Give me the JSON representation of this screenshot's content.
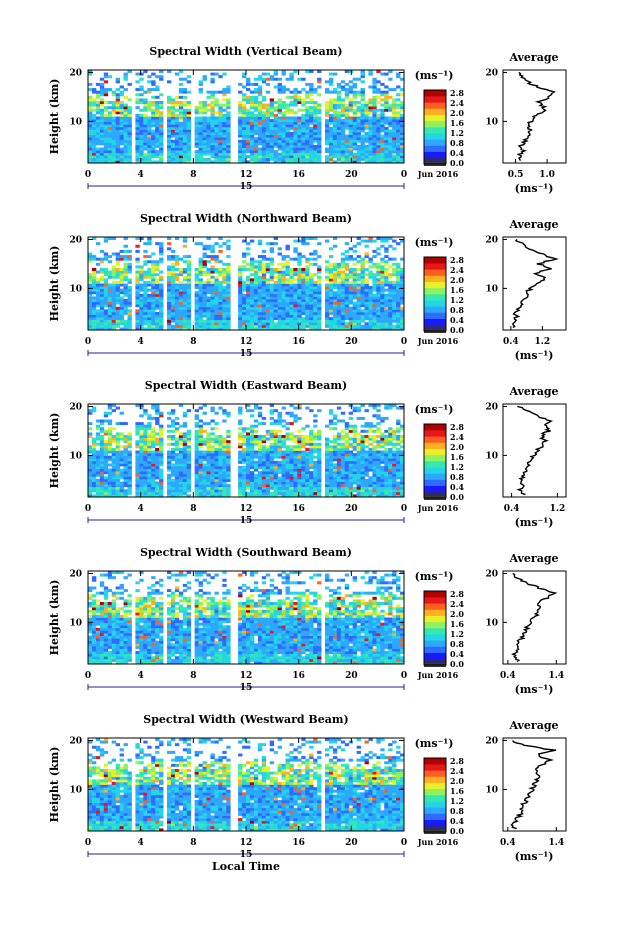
{
  "chart_data": [
    {
      "type": "heatmap",
      "title": "Spectral Width (Vertical Beam)",
      "ylabel": "Height (km)",
      "xlabel": "",
      "xticks": [
        "0",
        "4",
        "8",
        "12",
        "16",
        "20",
        "0"
      ],
      "yticks": [
        "20",
        "10"
      ],
      "ylim": [
        1.5,
        20.5
      ],
      "xlim": [
        0,
        24
      ],
      "date_marker": "15",
      "date_label": "Jun 2016",
      "colorbar": {
        "unit": "(ms⁻¹)",
        "ticks": [
          "2.8",
          "2.4",
          "2.0",
          "1.6",
          "1.2",
          "0.8",
          "0.4",
          "0.0"
        ]
      },
      "data_gaps_hours": [
        [
          3.3,
          3.7
        ],
        [
          5.7,
          6.0
        ],
        [
          7.7,
          8.0
        ],
        [
          10.9,
          11.5
        ],
        [
          17.6,
          18.0
        ]
      ],
      "profile": {
        "title": "Average",
        "xticks": [
          "0.5",
          "1.0"
        ],
        "xlim": [
          0.3,
          1.3
        ],
        "xlabel": "(ms⁻¹)",
        "heights_km": [
          2,
          3,
          4,
          5,
          6,
          7,
          8,
          9,
          10,
          11,
          12,
          13,
          14,
          15,
          16,
          17,
          18,
          19,
          20
        ],
        "values": [
          0.6,
          0.55,
          0.62,
          0.58,
          0.65,
          0.7,
          0.72,
          0.7,
          0.75,
          0.8,
          0.95,
          0.95,
          0.85,
          1.05,
          1.1,
          0.85,
          0.7,
          0.6,
          0.55
        ]
      }
    },
    {
      "type": "heatmap",
      "title": "Spectral Width (Northward Beam)",
      "ylabel": "Height (km)",
      "xlabel": "",
      "xticks": [
        "0",
        "4",
        "8",
        "12",
        "16",
        "20",
        "0"
      ],
      "yticks": [
        "20",
        "10"
      ],
      "ylim": [
        1.5,
        20.5
      ],
      "xlim": [
        0,
        24
      ],
      "date_marker": "15",
      "date_label": "Jun 2016",
      "colorbar": {
        "unit": "(ms⁻¹)",
        "ticks": [
          "2.8",
          "2.4",
          "2.0",
          "1.6",
          "1.2",
          "0.8",
          "0.4",
          "0.0"
        ]
      },
      "data_gaps_hours": [
        [
          3.3,
          3.7
        ],
        [
          5.7,
          6.0
        ],
        [
          7.7,
          8.0
        ],
        [
          10.9,
          11.5
        ],
        [
          17.6,
          18.0
        ]
      ],
      "profile": {
        "title": "Average",
        "xticks": [
          "0.4",
          "1.2"
        ],
        "xlim": [
          0.2,
          1.8
        ],
        "xlabel": "(ms⁻¹)",
        "heights_km": [
          2,
          3,
          4,
          5,
          6,
          7,
          8,
          9,
          10,
          11,
          12,
          13,
          14,
          15,
          16,
          17,
          18,
          19,
          20
        ],
        "values": [
          0.5,
          0.48,
          0.55,
          0.5,
          0.6,
          0.65,
          0.75,
          0.8,
          0.9,
          1.1,
          1.3,
          1.0,
          1.4,
          1.1,
          1.5,
          1.2,
          0.9,
          0.7,
          0.55
        ]
      }
    },
    {
      "type": "heatmap",
      "title": "Spectral Width (Eastward Beam)",
      "ylabel": "Height (km)",
      "xlabel": "",
      "xticks": [
        "0",
        "4",
        "8",
        "12",
        "16",
        "20",
        "0"
      ],
      "yticks": [
        "20",
        "10"
      ],
      "ylim": [
        1.5,
        20.5
      ],
      "xlim": [
        0,
        24
      ],
      "date_marker": "15",
      "date_label": "Jun 2016",
      "colorbar": {
        "unit": "(ms⁻¹)",
        "ticks": [
          "2.8",
          "2.4",
          "2.0",
          "1.6",
          "1.2",
          "0.8",
          "0.4",
          "0.0"
        ]
      },
      "data_gaps_hours": [
        [
          3.3,
          3.7
        ],
        [
          5.7,
          6.0
        ],
        [
          7.7,
          8.0
        ],
        [
          10.9,
          11.5
        ],
        [
          17.6,
          18.0
        ]
      ],
      "profile": {
        "title": "Average",
        "xticks": [
          "0.4",
          "1.2"
        ],
        "xlim": [
          0.25,
          1.35
        ],
        "xlabel": "(ms⁻¹)",
        "heights_km": [
          2,
          3,
          4,
          5,
          6,
          7,
          8,
          9,
          10,
          11,
          12,
          13,
          14,
          15,
          16,
          17,
          18,
          19,
          20
        ],
        "values": [
          0.6,
          0.55,
          0.6,
          0.58,
          0.62,
          0.65,
          0.7,
          0.72,
          0.8,
          0.85,
          0.95,
          1.0,
          0.9,
          1.05,
          1.0,
          1.1,
          0.85,
          0.7,
          0.5
        ]
      }
    },
    {
      "type": "heatmap",
      "title": "Spectral Width (Southward Beam)",
      "ylabel": "Height (km)",
      "xlabel": "",
      "xticks": [
        "0",
        "4",
        "8",
        "12",
        "16",
        "20",
        "0"
      ],
      "yticks": [
        "20",
        "10"
      ],
      "ylim": [
        1.5,
        20.5
      ],
      "xlim": [
        0,
        24
      ],
      "date_marker": "15",
      "date_label": "Jun 2016",
      "colorbar": {
        "unit": "(ms⁻¹)",
        "ticks": [
          "2.8",
          "2.4",
          "2.0",
          "1.6",
          "1.2",
          "0.8",
          "0.4",
          "0.0"
        ]
      },
      "data_gaps_hours": [
        [
          3.3,
          3.7
        ],
        [
          5.7,
          6.0
        ],
        [
          7.7,
          8.0
        ],
        [
          10.9,
          11.5
        ],
        [
          17.6,
          18.0
        ]
      ],
      "profile": {
        "title": "Average",
        "xticks": [
          "0.4",
          "1.4"
        ],
        "xlim": [
          0.3,
          1.6
        ],
        "xlabel": "(ms⁻¹)",
        "heights_km": [
          2,
          3,
          4,
          5,
          6,
          7,
          8,
          9,
          10,
          11,
          12,
          13,
          14,
          15,
          16,
          17,
          18,
          19,
          20
        ],
        "values": [
          0.6,
          0.5,
          0.55,
          0.65,
          0.6,
          0.7,
          0.75,
          0.8,
          0.85,
          0.95,
          1.0,
          1.1,
          1.0,
          1.2,
          1.35,
          1.05,
          0.8,
          0.6,
          0.5
        ]
      }
    },
    {
      "type": "heatmap",
      "title": "Spectral Width (Westward Beam)",
      "ylabel": "Height (km)",
      "xlabel": "Local Time",
      "xticks": [
        "0",
        "4",
        "8",
        "12",
        "16",
        "20",
        "0"
      ],
      "yticks": [
        "20",
        "10"
      ],
      "ylim": [
        1.5,
        20.5
      ],
      "xlim": [
        0,
        24
      ],
      "date_marker": "15",
      "date_label": "Jun 2016",
      "colorbar": {
        "unit": "(ms⁻¹)",
        "ticks": [
          "2.8",
          "2.4",
          "2.0",
          "1.6",
          "1.2",
          "0.8",
          "0.4",
          "0.0"
        ]
      },
      "data_gaps_hours": [
        [
          3.3,
          3.7
        ],
        [
          5.7,
          6.0
        ],
        [
          7.7,
          8.0
        ],
        [
          10.9,
          11.5
        ],
        [
          17.6,
          18.0
        ]
      ],
      "profile": {
        "title": "Average",
        "xticks": [
          "0.4",
          "1.4"
        ],
        "xlim": [
          0.3,
          1.6
        ],
        "xlabel": "(ms⁻¹)",
        "heights_km": [
          2,
          3,
          4,
          5,
          6,
          7,
          8,
          9,
          10,
          11,
          12,
          13,
          14,
          15,
          16,
          17,
          18,
          19,
          20
        ],
        "values": [
          0.55,
          0.5,
          0.6,
          0.65,
          0.7,
          0.72,
          0.8,
          0.85,
          0.9,
          0.95,
          1.0,
          1.05,
          0.95,
          1.1,
          1.25,
          1.0,
          1.35,
          0.75,
          0.5
        ]
      }
    }
  ],
  "colors": {
    "colormap": [
      "#2b2b6e",
      "#1a1aff",
      "#2f6bff",
      "#2ea8ff",
      "#22d6e6",
      "#35e8b0",
      "#8ff060",
      "#e8f02a",
      "#ffb020",
      "#ff6020",
      "#e81818",
      "#b00000"
    ],
    "zero_band": "#3a3a3a",
    "axis": "#000000",
    "date_axis": "#202090"
  }
}
